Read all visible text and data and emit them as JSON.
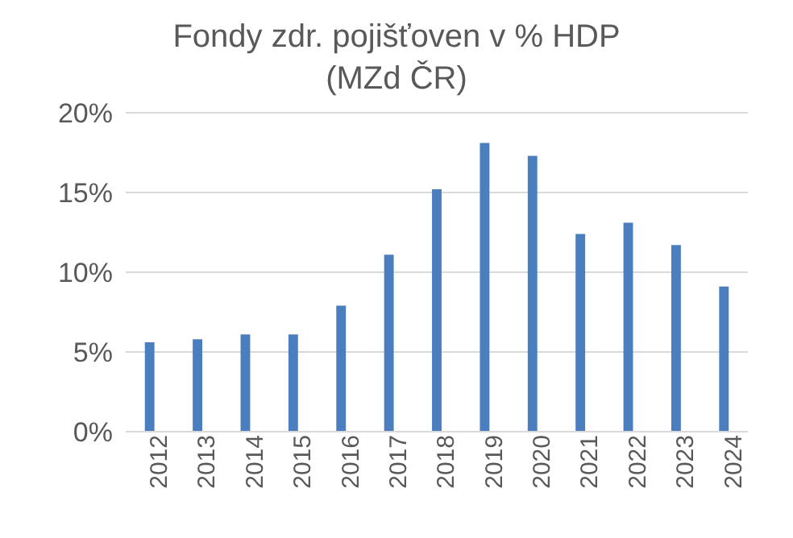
{
  "chart_data": {
    "type": "bar",
    "title": "Fondy zdr. pojišťoven v % HDP",
    "subtitle": "(MZd ČR)",
    "categories": [
      "2012",
      "2013",
      "2014",
      "2015",
      "2016",
      "2017",
      "2018",
      "2019",
      "2020",
      "2021",
      "2022",
      "2023",
      "2024"
    ],
    "values": [
      5.6,
      5.8,
      6.1,
      6.1,
      7.9,
      11.1,
      15.2,
      18.1,
      17.3,
      12.4,
      13.1,
      11.7,
      9.1
    ],
    "color": "#4a7ebf",
    "ylim": [
      0,
      20
    ],
    "yticks": [
      {
        "value": 0,
        "label": "0%"
      },
      {
        "value": 5,
        "label": "5%"
      },
      {
        "value": 10,
        "label": "10%"
      },
      {
        "value": 15,
        "label": "15%"
      },
      {
        "value": 20,
        "label": "20%"
      }
    ],
    "grid": "y"
  }
}
